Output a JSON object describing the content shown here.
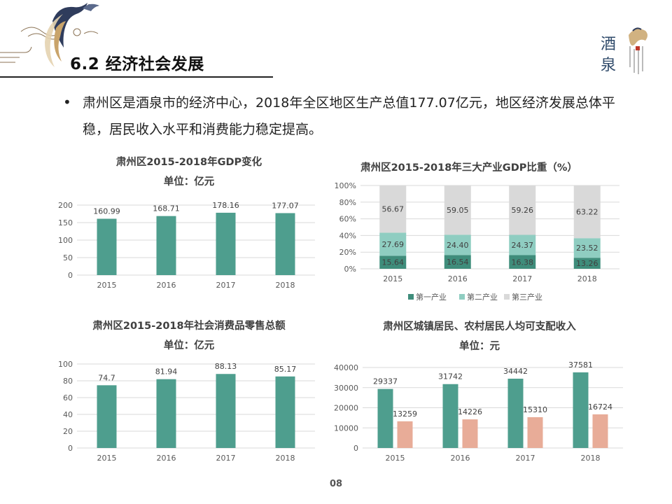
{
  "page": {
    "title": "6.2 经济社会发展",
    "bullet": "肃州区是酒泉市的经济中心，2018年全区地区生产总值177.07亿元，地区经济发展总体平稳，居民收入水平和消费能力稳定提高。",
    "page_number": "08",
    "brand_char_1": "酒",
    "brand_char_2": "泉"
  },
  "colors": {
    "teal": "#4e9e8e",
    "light_teal": "#8fcdc1",
    "gray": "#d9d9d9",
    "salmon": "#e8ac98",
    "dark_teal": "#3f8d7b"
  },
  "chart_data": [
    {
      "type": "bar",
      "title": "肃州区2015-2018年GDP变化",
      "subtitle": "单位：亿元",
      "categories": [
        "2015",
        "2016",
        "2017",
        "2018"
      ],
      "values": [
        160.99,
        168.71,
        178.16,
        177.07
      ],
      "value_labels": [
        "160.99",
        "168.71",
        "178.16",
        "177.07"
      ],
      "ylim": [
        0,
        200
      ],
      "yticks": [
        "0",
        "50",
        "100",
        "150",
        "200"
      ],
      "grid": true
    },
    {
      "type": "bar",
      "stacked": true,
      "title": "肃州区2015-2018年三大产业GDP比重（%）",
      "categories": [
        "2015",
        "2016",
        "2017",
        "2018"
      ],
      "series": [
        {
          "name": "第一产业",
          "values": [
            15.64,
            16.54,
            16.38,
            13.26
          ],
          "labels": [
            "15.64",
            "16.54",
            "16.38",
            "13.26"
          ]
        },
        {
          "name": "第二产业",
          "values": [
            27.69,
            24.4,
            24.37,
            23.52
          ],
          "labels": [
            "27.69",
            "24.40",
            "24.37",
            "23.52"
          ]
        },
        {
          "name": "第三产业",
          "values": [
            56.67,
            59.05,
            59.26,
            63.22
          ],
          "labels": [
            "56.67",
            "59.05",
            "59.26",
            "63.22"
          ]
        }
      ],
      "ylim": [
        0,
        100
      ],
      "yticks": [
        "0%",
        "20%",
        "40%",
        "60%",
        "80%",
        "100%"
      ],
      "legend": "bottom",
      "grid": true
    },
    {
      "type": "bar",
      "title": "肃州区2015-2018年社会消费品零售总额",
      "subtitle": "单位：亿元",
      "categories": [
        "2015",
        "2016",
        "2017",
        "2018"
      ],
      "values": [
        74.7,
        81.94,
        88.13,
        85.17
      ],
      "value_labels": [
        "74.7",
        "81.94",
        "88.13",
        "85.17"
      ],
      "ylim": [
        0,
        100
      ],
      "yticks": [
        "0",
        "20",
        "40",
        "60",
        "80",
        "100"
      ],
      "grid": true
    },
    {
      "type": "bar",
      "title": "肃州区城镇居民、农村居民人均可支配收入",
      "subtitle": "单位：元",
      "categories": [
        "2015",
        "2016",
        "2017",
        "2018"
      ],
      "series": [
        {
          "values": [
            29337,
            31742,
            34442,
            37581
          ],
          "labels": [
            "29337",
            "31742",
            "34442",
            "37581"
          ]
        },
        {
          "values": [
            13259,
            14226,
            15310,
            16724
          ],
          "labels": [
            "13259",
            "14226",
            "15310",
            "16724"
          ]
        }
      ],
      "ylim": [
        0,
        40000
      ],
      "yticks": [
        "0",
        "10000",
        "20000",
        "30000",
        "40000"
      ],
      "grid": true
    }
  ]
}
